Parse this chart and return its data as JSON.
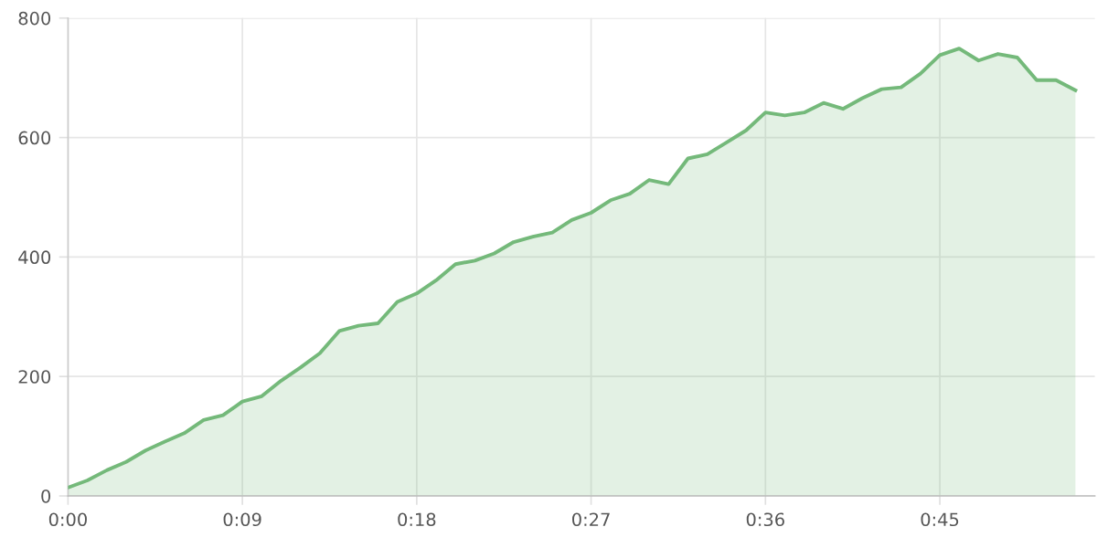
{
  "chart_data": {
    "type": "area",
    "x": [
      0,
      1,
      2,
      3,
      4,
      5,
      6,
      7,
      8,
      9,
      10,
      11,
      12,
      13,
      14,
      15,
      16,
      17,
      18,
      19,
      20,
      21,
      22,
      23,
      24,
      25,
      26,
      27,
      28,
      29,
      30,
      31,
      32,
      33,
      34,
      35,
      36,
      37,
      38,
      39,
      40,
      41,
      42,
      43,
      44,
      45,
      46,
      47,
      48,
      49,
      50,
      51,
      52
    ],
    "values": [
      14,
      26,
      43,
      57,
      76,
      91,
      105,
      127,
      135,
      158,
      167,
      193,
      215,
      239,
      276,
      285,
      289,
      325,
      339,
      361,
      388,
      394,
      406,
      425,
      434,
      441,
      462,
      474,
      495,
      506,
      529,
      522,
      565,
      572,
      592,
      612,
      642,
      637,
      642,
      658,
      648,
      666,
      681,
      684,
      707,
      738,
      749,
      729,
      740,
      734,
      696,
      696,
      679
    ],
    "color": "#74b97a",
    "xlim": [
      0,
      53
    ],
    "ylim": [
      0,
      800
    ],
    "xticks": [
      {
        "value": 0,
        "label": "0:00"
      },
      {
        "value": 9,
        "label": "0:09"
      },
      {
        "value": 18,
        "label": "0:18"
      },
      {
        "value": 27,
        "label": "0:27"
      },
      {
        "value": 36,
        "label": "0:36"
      },
      {
        "value": 45,
        "label": "0:45"
      }
    ],
    "yticks": [
      0,
      200,
      400,
      600,
      800
    ],
    "grid": true
  }
}
